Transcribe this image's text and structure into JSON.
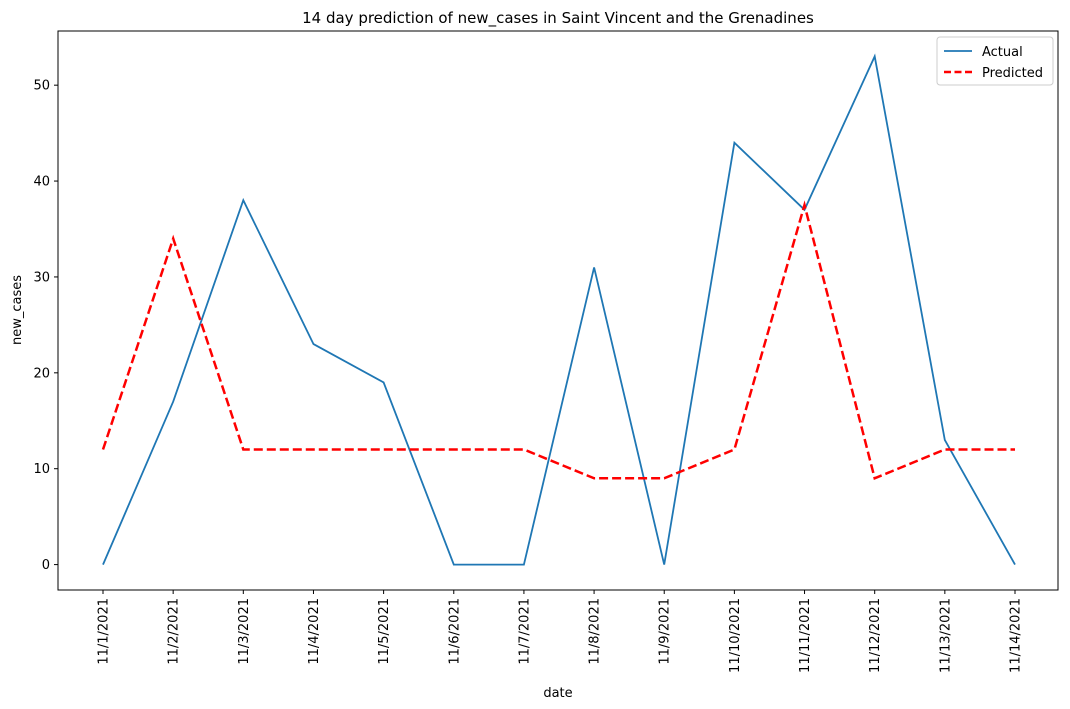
{
  "chart_data": {
    "type": "line",
    "title": "14 day prediction of new_cases in Saint Vincent and the Grenadines",
    "xlabel": "date",
    "ylabel": "new_cases",
    "categories": [
      "11/1/2021",
      "11/2/2021",
      "11/3/2021",
      "11/4/2021",
      "11/5/2021",
      "11/6/2021",
      "11/7/2021",
      "11/8/2021",
      "11/9/2021",
      "11/10/2021",
      "11/11/2021",
      "11/12/2021",
      "11/13/2021",
      "11/14/2021"
    ],
    "yticks": [
      0,
      10,
      20,
      30,
      40,
      50
    ],
    "ylim": [
      -2.65,
      55.65
    ],
    "grid": false,
    "legend_position": "top-right",
    "series": [
      {
        "name": "Actual",
        "color": "#1f77b4",
        "style": "solid",
        "values": [
          0,
          17,
          38,
          23,
          19,
          0,
          0,
          31,
          0,
          44,
          37,
          53,
          13,
          0
        ]
      },
      {
        "name": "Predicted",
        "color": "#ff0000",
        "style": "dashed",
        "values": [
          12,
          34,
          12,
          12,
          12,
          12,
          12,
          9,
          9,
          12,
          37.5,
          9,
          12,
          12
        ]
      }
    ]
  }
}
